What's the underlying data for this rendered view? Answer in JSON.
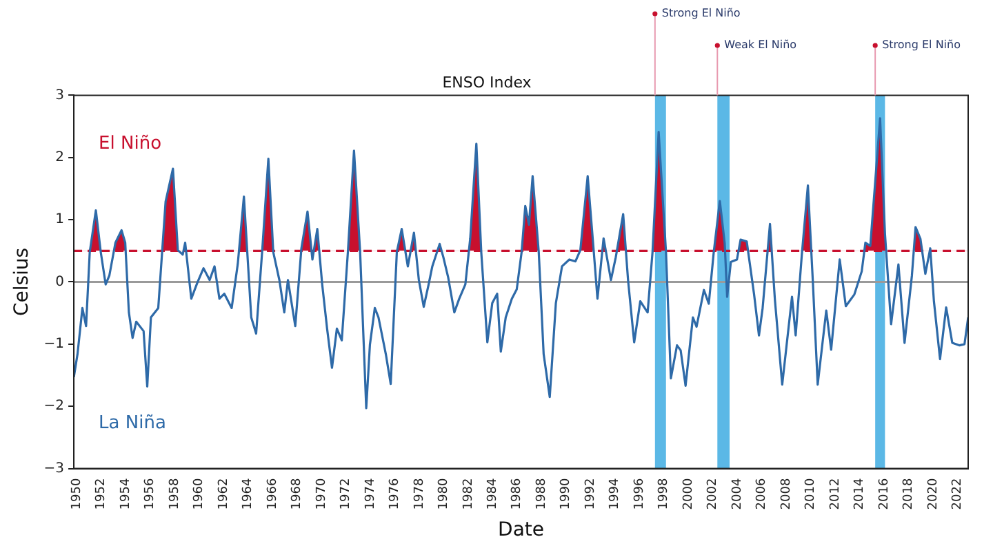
{
  "chart_data": {
    "type": "line",
    "title": "ENSO Index",
    "xlabel": "Date",
    "ylabel": "Celsius",
    "annotations": [
      "El Niño",
      "La Niña"
    ],
    "series": [
      {
        "color": "#2e6aa8",
        "x": [
          1950.0,
          1950.3,
          1950.7,
          1951.0,
          1951.3,
          1951.8,
          1952.2,
          1952.6,
          1952.9,
          1953.4,
          1953.9,
          1954.2,
          1954.5,
          1954.8,
          1955.1,
          1955.7,
          1956.0,
          1956.3,
          1956.9,
          1957.5,
          1958.1,
          1958.5,
          1958.9,
          1959.1,
          1959.6,
          1960.1,
          1960.6,
          1961.1,
          1961.5,
          1961.9,
          1962.3,
          1962.9,
          1963.4,
          1963.9,
          1964.5,
          1964.9,
          1965.4,
          1965.9,
          1966.3,
          1966.8,
          1967.2,
          1967.5,
          1968.1,
          1968.6,
          1969.1,
          1969.5,
          1969.9,
          1970.3,
          1970.7,
          1971.1,
          1971.5,
          1971.9,
          1972.4,
          1972.9,
          1973.4,
          1973.9,
          1974.2,
          1974.6,
          1974.9,
          1975.5,
          1975.9,
          1976.4,
          1976.8,
          1977.3,
          1977.8,
          1978.2,
          1978.6,
          1979.0,
          1979.3,
          1979.9,
          1980.2,
          1980.6,
          1981.1,
          1981.5,
          1982.0,
          1982.4,
          1982.9,
          1983.3,
          1983.8,
          1984.2,
          1984.6,
          1984.9,
          1985.3,
          1985.8,
          1986.2,
          1986.6,
          1986.9,
          1987.2,
          1987.5,
          1988.0,
          1988.4,
          1988.9,
          1989.4,
          1989.9,
          1990.5,
          1991.0,
          1991.4,
          1992.0,
          1992.5,
          1992.8,
          1993.3,
          1993.9,
          1994.3,
          1994.9,
          1995.3,
          1995.8,
          1996.3,
          1996.9,
          1997.3,
          1997.8,
          1998.4,
          1998.8,
          1999.3,
          1999.6,
          2000.0,
          2000.6,
          2000.9,
          2001.5,
          2001.9,
          2002.3,
          2002.8,
          2003.2,
          2003.4,
          2003.7,
          2004.2,
          2004.5,
          2005.0,
          2005.6,
          2006.0,
          2006.3,
          2006.9,
          2007.3,
          2007.9,
          2008.7,
          2009.0,
          2009.5,
          2010.0,
          2010.4,
          2010.8,
          2011.5,
          2011.9,
          2012.6,
          2013.1,
          2013.8,
          2014.4,
          2014.7,
          2015.1,
          2015.9,
          2016.3,
          2016.8,
          2017.4,
          2017.9,
          2018.5,
          2018.8,
          2019.2,
          2019.6,
          2020.0,
          2020.3,
          2020.8,
          2021.3,
          2021.8,
          2022.4,
          2022.8,
          2023.1
        ],
        "values": [
          -1.53,
          -1.16,
          -0.42,
          -0.71,
          0.48,
          1.15,
          0.48,
          -0.04,
          0.1,
          0.63,
          0.83,
          0.63,
          -0.49,
          -0.9,
          -0.64,
          -0.79,
          -1.68,
          -0.57,
          -0.42,
          1.29,
          1.82,
          0.51,
          0.44,
          0.63,
          -0.27,
          -0.01,
          0.22,
          0.03,
          0.25,
          -0.27,
          -0.19,
          -0.42,
          0.29,
          1.37,
          -0.57,
          -0.83,
          0.51,
          1.98,
          0.48,
          0.03,
          -0.49,
          0.03,
          -0.71,
          0.54,
          1.13,
          0.36,
          0.85,
          -0.04,
          -0.75,
          -1.38,
          -0.75,
          -0.94,
          0.48,
          2.11,
          0.48,
          -2.03,
          -1.01,
          -0.42,
          -0.57,
          -1.16,
          -1.64,
          0.48,
          0.85,
          0.25,
          0.79,
          0.03,
          -0.4,
          -0.04,
          0.25,
          0.61,
          0.4,
          0.07,
          -0.49,
          -0.27,
          -0.04,
          0.7,
          2.22,
          0.48,
          -0.97,
          -0.34,
          -0.19,
          -1.12,
          -0.57,
          -0.27,
          -0.12,
          0.48,
          1.22,
          0.92,
          1.7,
          0.48,
          -1.16,
          -1.85,
          -0.34,
          0.25,
          0.36,
          0.33,
          0.51,
          1.7,
          0.48,
          -0.27,
          0.7,
          0.03,
          0.4,
          1.09,
          0.03,
          -0.97,
          -0.31,
          -0.49,
          0.48,
          2.41,
          0.48,
          -1.55,
          -1.02,
          -1.1,
          -1.67,
          -0.57,
          -0.72,
          -0.13,
          -0.35,
          0.47,
          1.3,
          0.62,
          -0.24,
          0.32,
          0.36,
          0.68,
          0.65,
          -0.2,
          -0.86,
          -0.42,
          0.93,
          -0.28,
          -1.65,
          -0.24,
          -0.86,
          0.43,
          1.55,
          0.02,
          -1.65,
          -0.46,
          -1.09,
          0.36,
          -0.39,
          -0.2,
          0.17,
          0.63,
          0.58,
          2.63,
          0.77,
          -0.68,
          0.28,
          -0.98,
          0.1,
          0.88,
          0.69,
          0.13,
          0.54,
          -0.31,
          -1.24,
          -0.41,
          -0.98,
          -1.02,
          -1.0,
          -0.57
        ]
      }
    ],
    "xlim": [
      1950,
      2023.1
    ],
    "ylim": [
      -3,
      3
    ],
    "xticks": [
      1950,
      1952,
      1954,
      1956,
      1958,
      1960,
      1962,
      1964,
      1966,
      1968,
      1970,
      1972,
      1974,
      1976,
      1978,
      1980,
      1982,
      1984,
      1986,
      1988,
      1990,
      1992,
      1994,
      1996,
      1998,
      2000,
      2002,
      2004,
      2006,
      2008,
      2010,
      2012,
      2014,
      2016,
      2018,
      2020,
      2022
    ],
    "yticks": [
      {
        "value": -3,
        "label": "−3"
      },
      {
        "value": -2,
        "label": "−2"
      },
      {
        "value": -1,
        "label": "−1"
      },
      0,
      1,
      2,
      3
    ],
    "ref_lines": [
      {
        "axis": "y",
        "value": 0,
        "color": "#9a9a9a"
      },
      {
        "axis": "y",
        "value": 0.5,
        "color": "#c8102e",
        "line_style": "dashed"
      },
      {
        "axis": "x",
        "value": 1997.5,
        "label": "Strong El Niño",
        "color": "#e89ab0"
      },
      {
        "axis": "x",
        "value": 2002.6,
        "label": "Weak El Niño",
        "color": "#e89ab0"
      },
      {
        "axis": "x",
        "value": 2015.5,
        "label": "Strong El Niño",
        "color": "#e89ab0"
      }
    ],
    "bands": [
      {
        "axis": "x",
        "from": 1997.5,
        "to": 1998.4,
        "color": "#5bb8e6"
      },
      {
        "axis": "x",
        "from": 2002.6,
        "to": 2003.6,
        "color": "#5bb8e6"
      },
      {
        "axis": "x",
        "from": 2015.5,
        "to": 2016.3,
        "color": "#5bb8e6"
      }
    ],
    "grid": false,
    "legend": false,
    "marker": "none",
    "line_style": "solid"
  }
}
